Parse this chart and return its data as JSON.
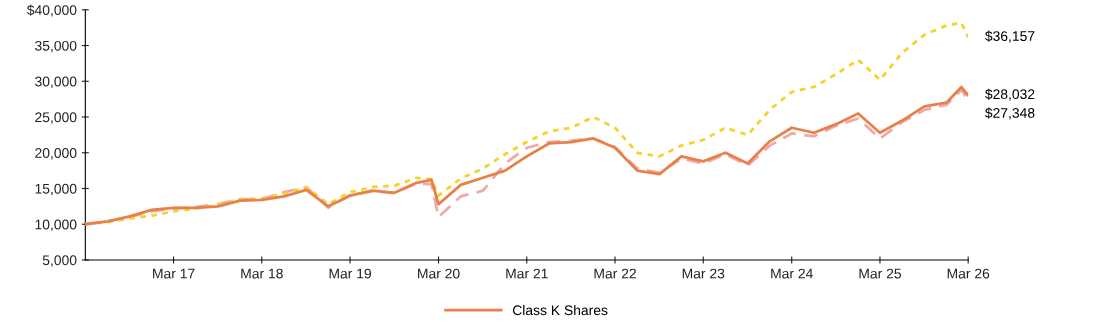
{
  "chart_data": {
    "type": "line",
    "x": [
      "2016-03",
      "2016-06",
      "2016-09",
      "2016-12",
      "2017-03",
      "2017-06",
      "2017-09",
      "2017-12",
      "2018-03",
      "2018-06",
      "2018-09",
      "2018-12",
      "2019-03",
      "2019-06",
      "2019-09",
      "2019-12",
      "2020-02",
      "2020-03",
      "2020-06",
      "2020-09",
      "2020-12",
      "2021-03",
      "2021-06",
      "2021-09",
      "2021-12",
      "2022-03",
      "2022-06",
      "2022-09",
      "2022-12",
      "2023-03",
      "2023-06",
      "2023-09",
      "2023-12",
      "2024-03",
      "2024-06",
      "2024-09",
      "2024-12",
      "2025-03",
      "2025-06",
      "2025-09",
      "2025-12",
      "2026-02",
      "2026-03"
    ],
    "series": [
      {
        "name": "Class K Shares",
        "color": "#e8804a",
        "line_style": "solid",
        "values": [
          10000,
          10400,
          11100,
          12000,
          12300,
          12300,
          12500,
          13300,
          13400,
          13900,
          14800,
          12500,
          14000,
          14700,
          14400,
          15800,
          16200,
          12800,
          15500,
          16500,
          17500,
          19500,
          21300,
          21500,
          22000,
          20700,
          17500,
          17000,
          19500,
          18800,
          20000,
          18500,
          21600,
          23500,
          22800,
          24000,
          25500,
          22800,
          24500,
          26500,
          27000,
          29200,
          28032
        ]
      },
      {
        "color": "#f5d327",
        "line_style": "dotted",
        "values": [
          10000,
          10300,
          10800,
          11200,
          11800,
          12200,
          12700,
          13500,
          13600,
          14300,
          15200,
          12800,
          14500,
          15200,
          15400,
          16500,
          16300,
          14000,
          16400,
          17800,
          19800,
          21500,
          23000,
          23500,
          25000,
          23500,
          20000,
          19500,
          21000,
          21800,
          23500,
          22500,
          26000,
          28500,
          29200,
          31000,
          33000,
          30200,
          34000,
          36500,
          37800,
          38200,
          36157
        ]
      },
      {
        "color": "#f0a8a8",
        "line_style": "dashed",
        "values": [
          10000,
          10400,
          11000,
          11800,
          12200,
          12400,
          12800,
          13500,
          13500,
          14500,
          15200,
          12300,
          14100,
          14600,
          14400,
          15700,
          15600,
          11000,
          13900,
          14700,
          18500,
          20700,
          21500,
          21700,
          22000,
          20800,
          17800,
          17200,
          19200,
          18500,
          19800,
          18200,
          21000,
          22700,
          22300,
          23800,
          24800,
          22000,
          24300,
          26000,
          26700,
          28800,
          27348
        ]
      }
    ],
    "xlim": [
      "2016-03",
      "2026-03"
    ],
    "xticks": [
      {
        "value": "2017-03",
        "label": "Mar 17"
      },
      {
        "value": "2018-03",
        "label": "Mar 18"
      },
      {
        "value": "2019-03",
        "label": "Mar 19"
      },
      {
        "value": "2020-03",
        "label": "Mar 20"
      },
      {
        "value": "2021-03",
        "label": "Mar 21"
      },
      {
        "value": "2022-03",
        "label": "Mar 22"
      },
      {
        "value": "2023-03",
        "label": "Mar 23"
      },
      {
        "value": "2024-03",
        "label": "Mar 24"
      },
      {
        "value": "2025-03",
        "label": "Mar 25"
      },
      {
        "value": "2026-03",
        "label": "Mar 26"
      }
    ],
    "ylim": [
      5000,
      40000
    ],
    "yticks": [
      {
        "value": 5000,
        "label": "5,000"
      },
      {
        "value": 10000,
        "label": "10,000"
      },
      {
        "value": 15000,
        "label": "15,000"
      },
      {
        "value": 20000,
        "label": "20,000"
      },
      {
        "value": 25000,
        "label": "25,000"
      },
      {
        "value": 30000,
        "label": "30,000"
      },
      {
        "value": 35000,
        "label": "35,000"
      },
      {
        "value": 40000,
        "label": "$40,000"
      }
    ],
    "annotations": [
      {
        "text": "$36,157",
        "x": "2026-03",
        "y": 36157
      },
      {
        "text": "$28,032",
        "x": "2026-03",
        "y": 28032
      },
      {
        "text": "$27,348",
        "x": "2026-03",
        "y": 27348
      }
    ],
    "grid": false,
    "legend": "bottom"
  }
}
